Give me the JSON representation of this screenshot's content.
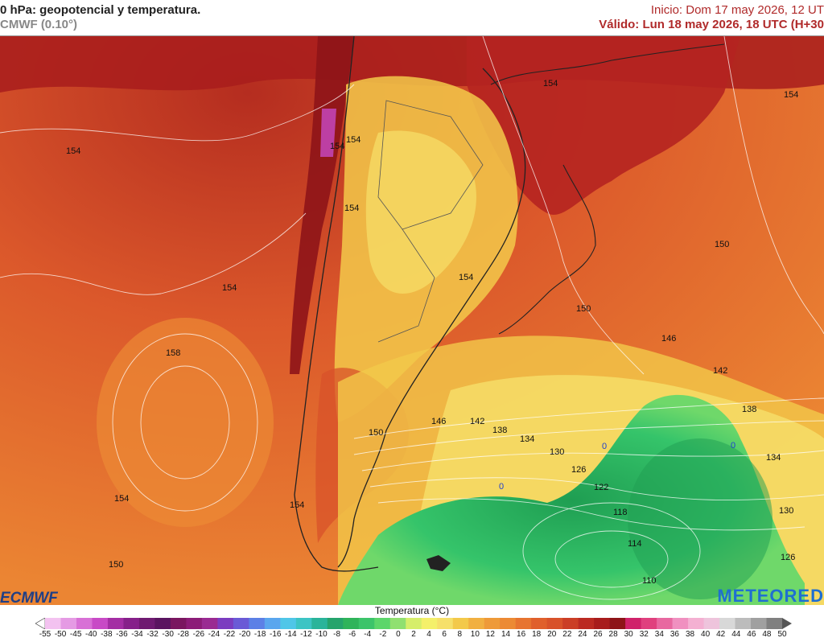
{
  "header": {
    "title": "0 hPa: geopotencial y temperatura.",
    "model": "CMWF (0.10°)",
    "init": "Inicio: Dom 17 may 2026, 12 UT",
    "valid": "Válido: Lun 18 may 2026, 18 UTC (H+30"
  },
  "map": {
    "isohypse_labels": [
      "154",
      "154",
      "154",
      "158",
      "154",
      "150",
      "154",
      "154",
      "150",
      "146",
      "142",
      "138",
      "134",
      "130",
      "126",
      "122",
      "118",
      "114",
      "110",
      "154",
      "154",
      "154",
      "150",
      "146",
      "142",
      "138",
      "134",
      "130",
      "126",
      "150",
      "154"
    ],
    "cold_labels": [
      "0",
      "0",
      "0"
    ],
    "colors": {
      "warm_dark": "#a81c1c",
      "warm": "#d8522a",
      "orange": "#ec8a34",
      "yellow": "#f3c94a",
      "pale": "#f6e06a",
      "green": "#35c46a",
      "green_dark": "#1f9e52"
    }
  },
  "logos": {
    "left": "ECMWF",
    "right": "METEORED"
  },
  "legend": {
    "title": "Temperatura (°C)",
    "ticks": [
      "-55",
      "-50",
      "-45",
      "-40",
      "-38",
      "-36",
      "-34",
      "-32",
      "-30",
      "-28",
      "-26",
      "-24",
      "-22",
      "-20",
      "-18",
      "-16",
      "-14",
      "-12",
      "-10",
      "-8",
      "-6",
      "-4",
      "-2",
      "0",
      "2",
      "4",
      "6",
      "8",
      "10",
      "12",
      "14",
      "16",
      "18",
      "20",
      "22",
      "24",
      "26",
      "28",
      "30",
      "32",
      "34",
      "36",
      "38",
      "40",
      "42",
      "44",
      "46",
      "48",
      "50"
    ],
    "colors": [
      "#ffffff",
      "#f3c2f0",
      "#e59ae4",
      "#d870d6",
      "#c84ac6",
      "#a42ea4",
      "#86208a",
      "#6f1a71",
      "#5a1460",
      "#7a1660",
      "#8c1c78",
      "#9a2a92",
      "#7b3cc0",
      "#6a5ad6",
      "#5c80e6",
      "#5aa6ee",
      "#4fc6e8",
      "#3cc4c4",
      "#2ab49a",
      "#25a46c",
      "#2fb45a",
      "#3cc46a",
      "#5cd66a",
      "#90e070",
      "#d6ee6a",
      "#f4f06a",
      "#f6e06a",
      "#f3c94a",
      "#f1b040",
      "#ee9a38",
      "#ec8a34",
      "#e77430",
      "#e0602c",
      "#d8522a",
      "#cb3e26",
      "#bb2a22",
      "#a81c1c",
      "#8e1418",
      "#d0226a",
      "#e0407e",
      "#e868a0",
      "#f090c0",
      "#f4b0d2",
      "#eec4dc",
      "#d8d8d8",
      "#bcbcbc",
      "#a0a0a0",
      "#808080",
      "#555555"
    ]
  }
}
